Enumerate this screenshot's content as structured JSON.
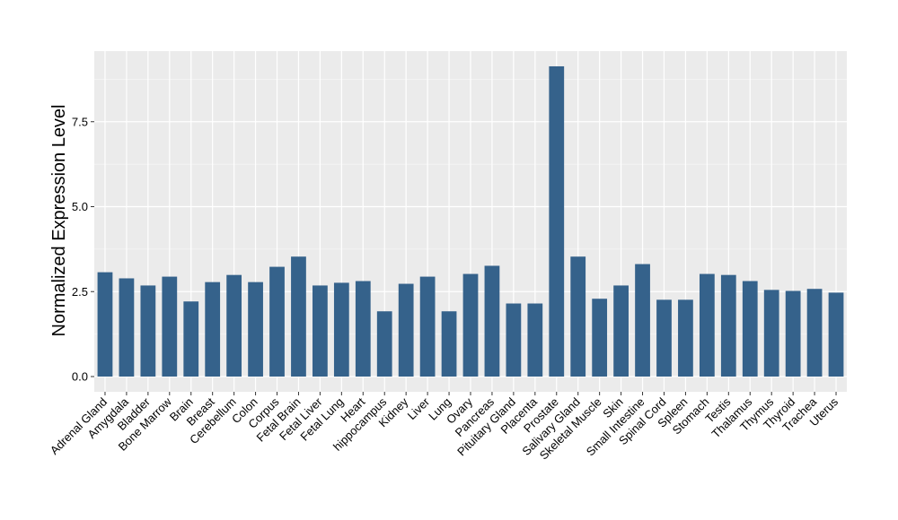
{
  "chart_data": {
    "type": "bar",
    "title": "",
    "xlabel": "",
    "ylabel": "Normalized Expression Level",
    "ylim": [
      -0.4,
      9.6
    ],
    "yticks": [
      0.0,
      2.5,
      5.0,
      7.5
    ],
    "ytick_labels": [
      "0.0",
      "2.5",
      "5.0",
      "7.5"
    ],
    "grid": true,
    "legend": "none",
    "colors": {
      "bar": "#35628b",
      "panel": "#ebebeb",
      "grid": "#ffffff",
      "tick": "#333333"
    },
    "categories": [
      "Adrenal Gland",
      "Amygdala",
      "Bladder",
      "Bone Marrow",
      "Brain",
      "Breast",
      "Cerebellum",
      "Colon",
      "Corpus",
      "Fetal Brain",
      "Fetal Liver",
      "Fetal Lung",
      "Heart",
      "hippocampus",
      "Kidney",
      "Liver",
      "Lung",
      "Ovary",
      "Pancreas",
      "Pituitary Gland",
      "Placenta",
      "Prostate",
      "Salivary Gland",
      "Skeletal Muscle",
      "Skin",
      "Small Intestine",
      "Spinal Cord",
      "Spleen",
      "Stomach",
      "Testis",
      "Thalamus",
      "Thymus",
      "Thyroid",
      "Trachea",
      "Uterus"
    ],
    "values": [
      3.07,
      2.89,
      2.68,
      2.94,
      2.21,
      2.78,
      2.99,
      2.78,
      3.23,
      3.53,
      2.68,
      2.76,
      2.81,
      1.92,
      2.73,
      2.94,
      1.92,
      3.02,
      3.26,
      2.15,
      2.15,
      9.13,
      3.53,
      2.29,
      2.68,
      3.31,
      2.26,
      2.26,
      3.02,
      2.99,
      2.81,
      2.55,
      2.52,
      2.58,
      2.47
    ]
  }
}
